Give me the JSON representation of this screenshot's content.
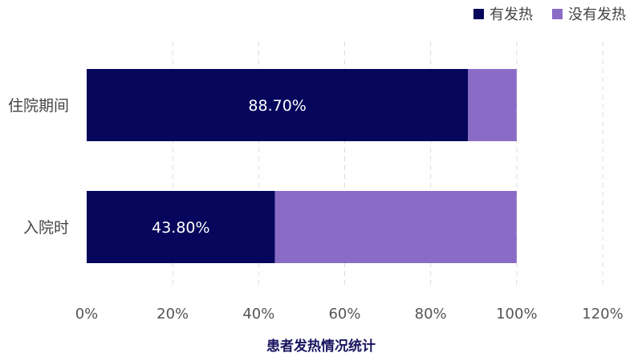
{
  "chart_data": {
    "type": "bar",
    "orientation": "horizontal",
    "stacked": true,
    "categories": [
      "入院时",
      "住院期间"
    ],
    "series": [
      {
        "name": "有发热",
        "values": [
          43.8,
          88.7
        ],
        "color": "#06065c",
        "labels": [
          "43.80%",
          "88.70%"
        ]
      },
      {
        "name": "没有发热",
        "values": [
          56.2,
          11.3
        ],
        "color": "#8a6cc7"
      }
    ],
    "xlabel": "患者发热情况统计",
    "ylabel": "",
    "xlim": [
      0,
      120
    ],
    "xticks": [
      0,
      20,
      40,
      60,
      80,
      100,
      120
    ],
    "xtick_labels": [
      "0%",
      "20%",
      "40%",
      "60%",
      "80%",
      "100%",
      "120%"
    ],
    "grid": "vertical-dashed",
    "legend_position": "top-right"
  }
}
